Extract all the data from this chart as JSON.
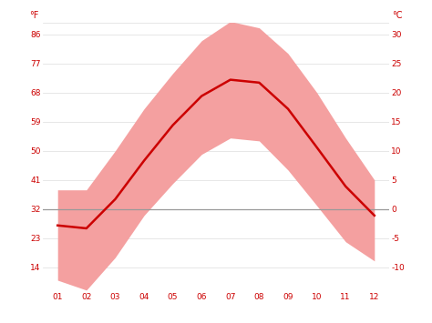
{
  "months": [
    1,
    2,
    3,
    4,
    5,
    6,
    7,
    8,
    9,
    10,
    11,
    12
  ],
  "month_labels": [
    "01",
    "02",
    "03",
    "04",
    "05",
    "06",
    "07",
    "08",
    "09",
    "10",
    "11",
    "12"
  ],
  "avg_temp_c": [
    -2.8,
    -3.3,
    1.7,
    8.3,
    14.4,
    19.4,
    22.2,
    21.7,
    17.2,
    10.6,
    3.9,
    -1.1
  ],
  "band_upper_c": [
    3.3,
    3.3,
    10.0,
    17.2,
    23.3,
    28.9,
    32.2,
    31.1,
    26.7,
    20.0,
    12.2,
    5.0
  ],
  "band_lower_c": [
    -12.2,
    -13.9,
    -8.3,
    -1.1,
    4.4,
    9.4,
    12.2,
    11.7,
    6.7,
    0.6,
    -5.6,
    -8.9
  ],
  "yticks_c": [
    -10,
    -5,
    0,
    5,
    10,
    15,
    20,
    25,
    30
  ],
  "yticks_f_labels": [
    "14",
    "23",
    "32",
    "41",
    "50",
    "59",
    "68",
    "77",
    "86"
  ],
  "yticks_c_labels": [
    "-10",
    "-5",
    "0",
    "5",
    "10",
    "15",
    "20",
    "25",
    "30"
  ],
  "ylim_c": [
    -14,
    32
  ],
  "xlim": [
    0.5,
    12.5
  ],
  "line_color": "#cc0000",
  "band_color": "#f4a0a0",
  "zero_line_color": "#999999",
  "background_color": "#ffffff",
  "grid_color": "#dddddd",
  "tick_color": "#cc0000",
  "tick_fontsize": 6.5,
  "label_fontsize": 7
}
